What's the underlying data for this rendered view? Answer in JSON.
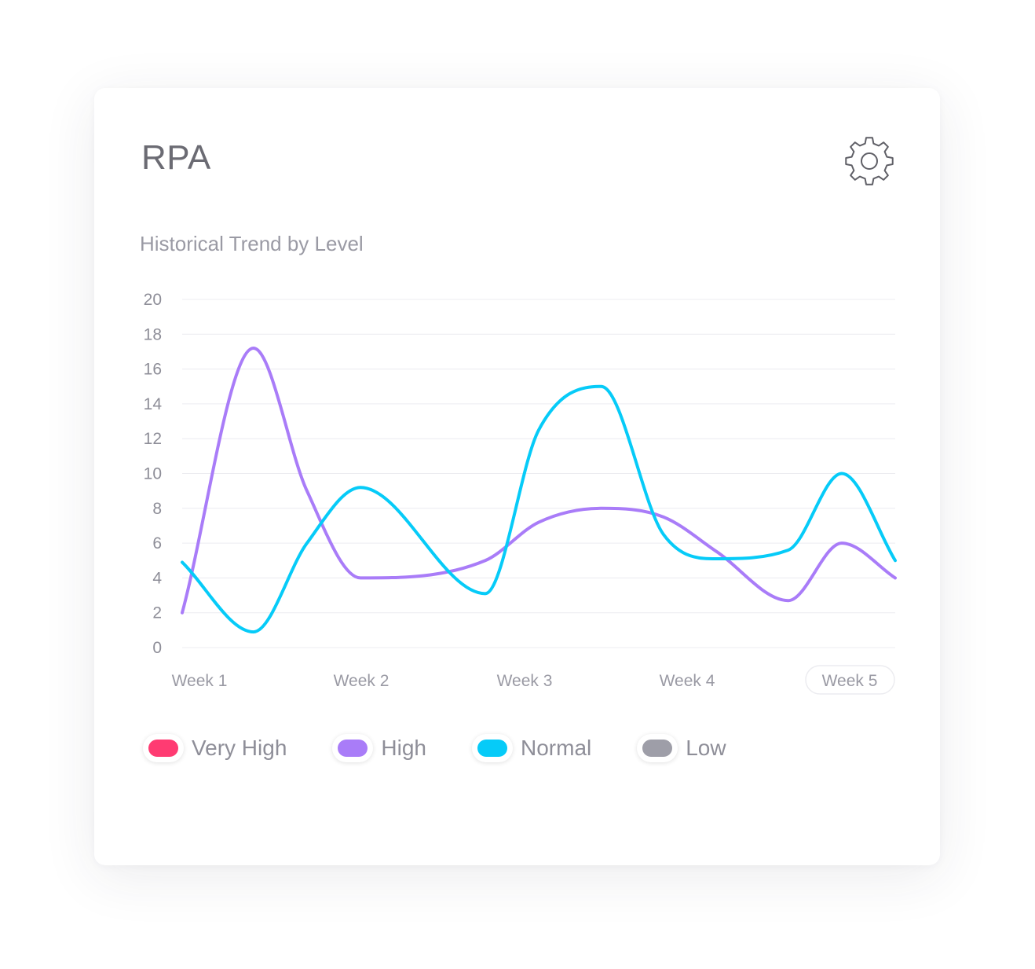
{
  "card": {
    "title": "RPA",
    "subtitle": "Historical Trend by Level",
    "settings_icon": "gear-icon"
  },
  "chart_data": {
    "type": "line",
    "title": "Historical Trend by Level",
    "categories": [
      "Week 1",
      "Week 2",
      "Week 3",
      "Week 4",
      "Week 5"
    ],
    "highlighted_category": "Week 5",
    "ylim": [
      0,
      20
    ],
    "yticks": [
      "0",
      "2",
      "4",
      "6",
      "8",
      "10",
      "12",
      "14",
      "16",
      "18",
      "20"
    ],
    "grid": true,
    "smooth": true,
    "x": [
      1.0,
      1.4,
      1.7,
      2.0,
      2.7,
      3.0,
      3.35,
      3.7,
      4.0,
      4.4,
      4.7,
      5.0
    ],
    "series": [
      {
        "name": "High",
        "color": "#a97cf8",
        "values": [
          2.0,
          17.2,
          9.0,
          4.0,
          5.0,
          7.2,
          8.0,
          7.5,
          5.5,
          2.7,
          6.0,
          4.0
        ]
      },
      {
        "name": "Normal",
        "color": "#06cbf8",
        "values": [
          4.9,
          0.9,
          6.0,
          9.2,
          3.1,
          12.5,
          15.0,
          6.5,
          5.1,
          5.6,
          10.0,
          5.0
        ]
      }
    ]
  },
  "legend": [
    {
      "label": "Very High",
      "color": "#ff3b72",
      "icon": "very-high-swatch"
    },
    {
      "label": "High",
      "color": "#a97cf8",
      "icon": "high-swatch"
    },
    {
      "label": "Normal",
      "color": "#06cbf8",
      "icon": "normal-swatch"
    },
    {
      "label": "Low",
      "color": "#9e9ea8",
      "icon": "low-swatch"
    }
  ]
}
